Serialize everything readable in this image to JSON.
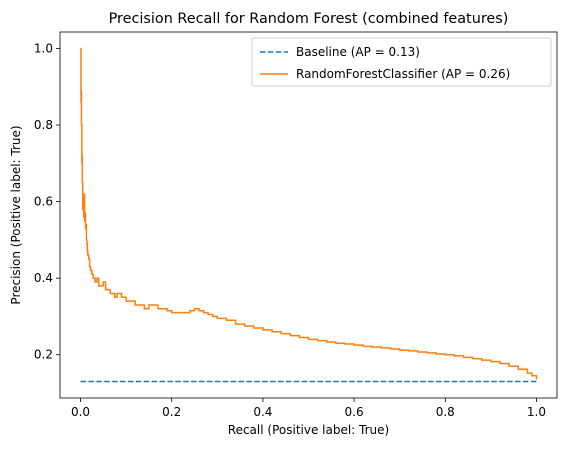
{
  "chart_data": {
    "type": "line",
    "title": "Precision Recall for Random Forest (combined features)",
    "xlabel": "Recall (Positive label: True)",
    "ylabel": "Precision (Positive label: True)",
    "xlim": [
      -0.045,
      1.045
    ],
    "ylim": [
      0.087,
      1.043
    ],
    "xticks": [
      0.0,
      0.2,
      0.4,
      0.6,
      0.8,
      1.0
    ],
    "xtick_labels": [
      "0.0",
      "0.2",
      "0.4",
      "0.6",
      "0.8",
      "1.0"
    ],
    "yticks": [
      0.2,
      0.4,
      0.6,
      0.8,
      1.0
    ],
    "ytick_labels": [
      "0.2",
      "0.4",
      "0.6",
      "0.8",
      "1.0"
    ],
    "grid": false,
    "legend_position": "top-right",
    "series": [
      {
        "name": "Baseline (AP = 0.13)",
        "color": "#1f77b4",
        "style": "dashed",
        "x": [
          0.0,
          1.0
        ],
        "y": [
          0.13,
          0.13
        ]
      },
      {
        "name": "RandomForestClassifier (AP = 0.26)",
        "color": "#ff7f0e",
        "style": "solid",
        "x": [
          0.0,
          0.001,
          0.001,
          0.002,
          0.002,
          0.003,
          0.003,
          0.004,
          0.004,
          0.005,
          0.005,
          0.006,
          0.007,
          0.008,
          0.009,
          0.01,
          0.011,
          0.012,
          0.013,
          0.014,
          0.015,
          0.016,
          0.018,
          0.02,
          0.022,
          0.025,
          0.028,
          0.032,
          0.036,
          0.04,
          0.045,
          0.05,
          0.055,
          0.06,
          0.065,
          0.07,
          0.075,
          0.08,
          0.09,
          0.1,
          0.11,
          0.12,
          0.13,
          0.14,
          0.15,
          0.16,
          0.17,
          0.18,
          0.19,
          0.2,
          0.21,
          0.22,
          0.23,
          0.24,
          0.25,
          0.26,
          0.27,
          0.28,
          0.29,
          0.3,
          0.32,
          0.34,
          0.36,
          0.38,
          0.4,
          0.42,
          0.44,
          0.46,
          0.48,
          0.5,
          0.52,
          0.54,
          0.56,
          0.58,
          0.6,
          0.62,
          0.64,
          0.66,
          0.68,
          0.7,
          0.72,
          0.74,
          0.76,
          0.78,
          0.8,
          0.82,
          0.84,
          0.86,
          0.88,
          0.9,
          0.92,
          0.94,
          0.96,
          0.98,
          0.99,
          1.0
        ],
        "y": [
          1.0,
          1.0,
          0.86,
          0.89,
          0.8,
          0.75,
          0.7,
          0.72,
          0.65,
          0.64,
          0.58,
          0.6,
          0.56,
          0.62,
          0.55,
          0.57,
          0.53,
          0.54,
          0.5,
          0.49,
          0.47,
          0.46,
          0.45,
          0.43,
          0.42,
          0.41,
          0.4,
          0.39,
          0.4,
          0.38,
          0.38,
          0.39,
          0.37,
          0.37,
          0.36,
          0.36,
          0.35,
          0.36,
          0.35,
          0.34,
          0.34,
          0.33,
          0.33,
          0.32,
          0.33,
          0.33,
          0.32,
          0.32,
          0.315,
          0.31,
          0.31,
          0.31,
          0.31,
          0.315,
          0.32,
          0.315,
          0.31,
          0.305,
          0.3,
          0.295,
          0.29,
          0.28,
          0.275,
          0.27,
          0.265,
          0.26,
          0.255,
          0.25,
          0.245,
          0.24,
          0.237,
          0.233,
          0.23,
          0.228,
          0.225,
          0.222,
          0.22,
          0.218,
          0.215,
          0.212,
          0.21,
          0.207,
          0.205,
          0.202,
          0.2,
          0.197,
          0.193,
          0.19,
          0.186,
          0.182,
          0.177,
          0.17,
          0.162,
          0.152,
          0.145,
          0.135
        ]
      }
    ]
  }
}
